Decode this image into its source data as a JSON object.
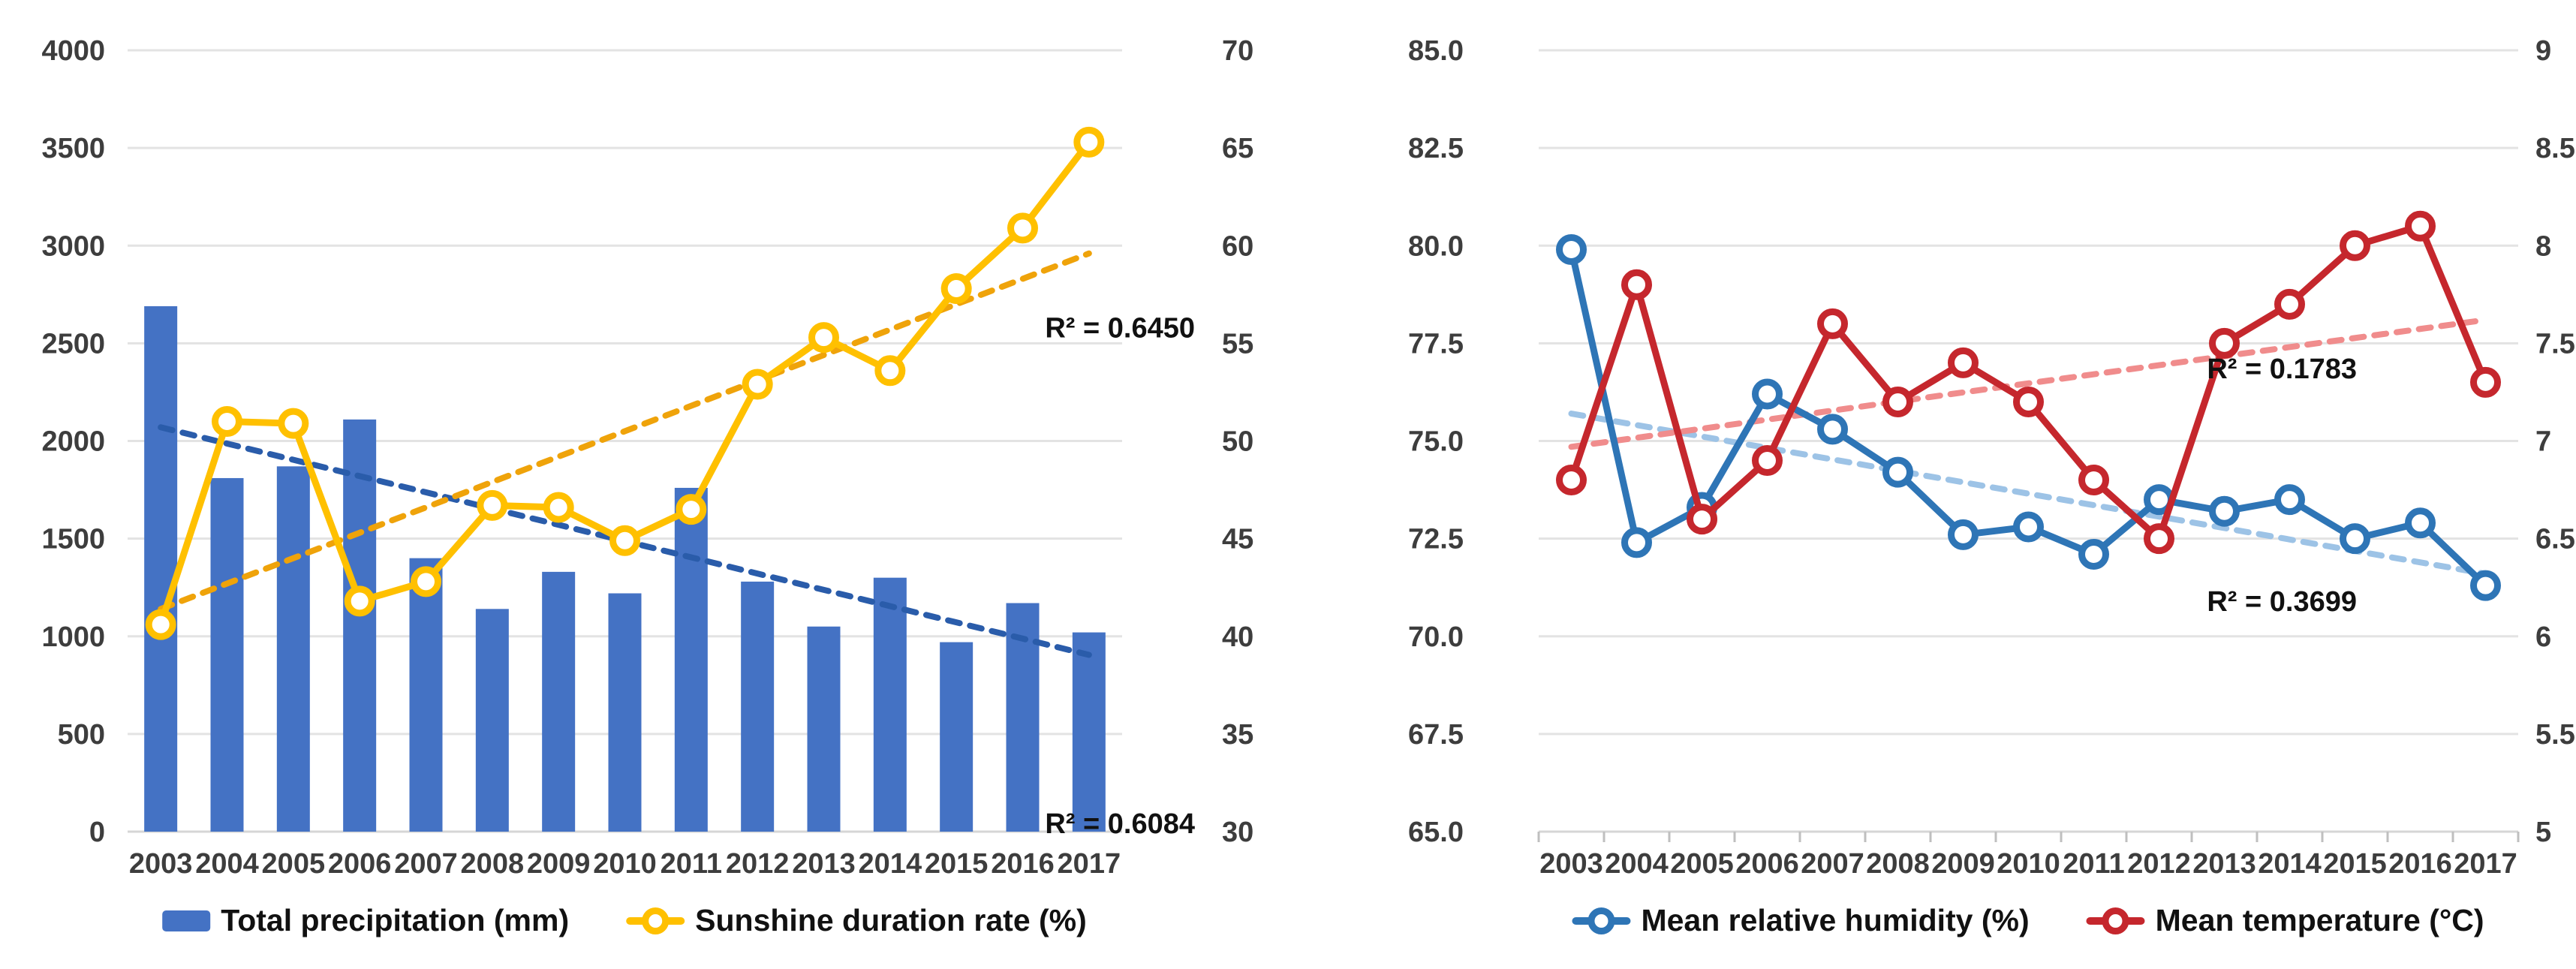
{
  "page": {
    "background": "#FFFFFF"
  },
  "years": [
    "2003",
    "2004",
    "2005",
    "2006",
    "2007",
    "2008",
    "2009",
    "2010",
    "2011",
    "2012",
    "2013",
    "2014",
    "2015",
    "2016",
    "2017"
  ],
  "chart_data": [
    {
      "id": "precipitation-sunshine",
      "type": "bar",
      "subtype": "bar-line-combo",
      "categories": [
        "2003",
        "2004",
        "2005",
        "2006",
        "2007",
        "2008",
        "2009",
        "2010",
        "2011",
        "2012",
        "2013",
        "2014",
        "2015",
        "2016",
        "2017"
      ],
      "title": "",
      "xlabel": "",
      "ylabel_left": "",
      "ylabel_right": "",
      "left_axis": {
        "min": 0,
        "max": 4000,
        "step": 500,
        "tick_labels": [
          "4000",
          "3500",
          "3000",
          "2500",
          "2000",
          "1500",
          "1000",
          "500",
          "0"
        ]
      },
      "right_axis": {
        "min": 30,
        "max": 70,
        "step": 5,
        "tick_labels": [
          "70",
          "65",
          "60",
          "55",
          "50",
          "45",
          "40",
          "35",
          "30"
        ]
      },
      "grid": true,
      "legend_position": "bottom",
      "series": [
        {
          "name": "Total precipitation (mm)",
          "type": "bar",
          "axis": "left",
          "color": "#4472C4",
          "values": [
            2690,
            1810,
            1870,
            2110,
            1400,
            1140,
            1330,
            1220,
            1760,
            1280,
            1050,
            1300,
            970,
            1170,
            1020
          ]
        },
        {
          "name": "Sunshine duration rate (%)",
          "type": "line",
          "axis": "right",
          "color": "#FFC000",
          "marker": "hollow-circle",
          "values": [
            40.6,
            51.0,
            50.9,
            41.8,
            42.8,
            46.7,
            46.6,
            44.9,
            46.5,
            52.9,
            55.3,
            53.6,
            57.8,
            60.9,
            65.3
          ]
        }
      ],
      "trendlines": [
        {
          "series": "Total precipitation (mm)",
          "axis": "left",
          "style": "dashed",
          "color": "#2A5CAA",
          "start_value": 2070,
          "end_value": 905,
          "r2_label": "R² = 0.6084",
          "r2_label_value": 43.0
        },
        {
          "series": "Sunshine duration rate (%)",
          "axis": "right",
          "style": "dashed",
          "color": "#EFA30A",
          "start_value": 41.4,
          "end_value": 59.6,
          "r2_label": "R² = 0.6450",
          "r2_label_value": 55.8
        }
      ]
    },
    {
      "id": "humidity-temperature",
      "type": "line",
      "categories": [
        "2003",
        "2004",
        "2005",
        "2006",
        "2007",
        "2008",
        "2009",
        "2010",
        "2011",
        "2012",
        "2013",
        "2014",
        "2015",
        "2016",
        "2017"
      ],
      "title": "",
      "xlabel": "",
      "ylabel_left": "",
      "ylabel_right": "",
      "left_axis": {
        "min": 65,
        "max": 85,
        "step": 2.5,
        "tick_labels": [
          "85.0",
          "82.5",
          "80.0",
          "77.5",
          "75.0",
          "72.5",
          "70.0",
          "67.5",
          "65.0"
        ]
      },
      "right_axis": {
        "min": 5,
        "max": 9,
        "step": 0.5,
        "tick_labels": [
          "9",
          "8.5",
          "8",
          "7.5",
          "7",
          "6.5",
          "6",
          "5.5",
          "5"
        ]
      },
      "grid": true,
      "legend_position": "bottom",
      "series": [
        {
          "name": "Mean relative humidity (%)",
          "type": "line",
          "axis": "left",
          "color": "#2E75B6",
          "marker": "hollow-circle",
          "values": [
            79.9,
            72.4,
            73.3,
            76.2,
            75.3,
            74.2,
            72.6,
            72.8,
            72.1,
            73.5,
            73.2,
            73.5,
            72.5,
            72.9,
            71.3
          ]
        },
        {
          "name": "Mean temperature (°C)",
          "type": "line",
          "axis": "right",
          "color": "#C5272D",
          "marker": "hollow-circle",
          "values": [
            6.8,
            7.8,
            6.6,
            6.9,
            7.6,
            7.2,
            7.4,
            7.2,
            6.8,
            6.5,
            7.5,
            7.7,
            8.0,
            8.1,
            7.3
          ]
        }
      ],
      "trendlines": [
        {
          "series": "Mean relative humidity (%)",
          "axis": "left",
          "style": "dashed",
          "color": "#9DC3E6",
          "start_value": 75.7,
          "end_value": 71.6,
          "r2_label": "R² = 0.3699",
          "r2_label_value": 70.9
        },
        {
          "series": "Mean temperature (°C)",
          "axis": "right",
          "style": "dashed",
          "color": "#F08C8C",
          "start_value": 6.97,
          "end_value": 7.62,
          "r2_label": "R² = 0.1783",
          "r2_label_value": 7.37
        }
      ]
    }
  ]
}
